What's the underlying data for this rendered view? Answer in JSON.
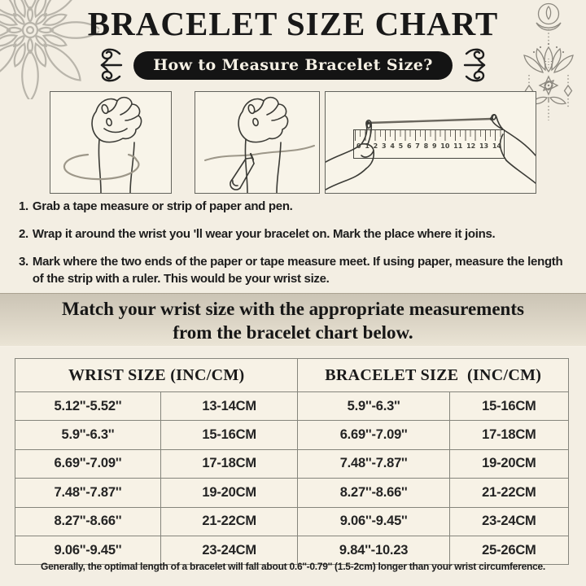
{
  "title": "BRACELET SIZE CHART",
  "subtitle": "How to Measure Bracelet Size?",
  "steps": [
    {
      "num": "1.",
      "text": "Grab a tape measure or strip of paper and pen."
    },
    {
      "num": "2.",
      "text": "Wrap it around the wrist you 'll wear your bracelet on. Mark the place where it joins."
    },
    {
      "num": "3.",
      "text": "Mark where the two ends of the paper or tape measure meet. If using paper, measure the length of the strip with a ruler. This would be your wrist size."
    }
  ],
  "banner": {
    "line1": "Match your wrist size with the appropriate measurements",
    "line2": "from the bracelet chart below."
  },
  "table": {
    "headers": {
      "wrist": "WRIST SIZE (INC/CM)",
      "bracelet": "BRACELET SIZE  (INC/CM)"
    },
    "rows": [
      [
        "5.12''-5.52''",
        "13-14CM",
        "5.9''-6.3''",
        "15-16CM"
      ],
      [
        "5.9''-6.3''",
        "15-16CM",
        "6.69''-7.09''",
        "17-18CM"
      ],
      [
        "6.69''-7.09''",
        "17-18CM",
        "7.48''-7.87''",
        "19-20CM"
      ],
      [
        "7.48''-7.87''",
        "19-20CM",
        "8.27''-8.66''",
        "21-22CM"
      ],
      [
        "8.27''-8.66''",
        "21-22CM",
        "9.06''-9.45''",
        "23-24CM"
      ],
      [
        "9.06''-9.45''",
        "23-24CM",
        "9.84''-10.23",
        "25-26CM"
      ]
    ]
  },
  "footer_note": "Generally, the optimal length of a bracelet will fall about 0.6''-0.79'' (1.5-2cm) longer than your wrist circumference.",
  "ruler": {
    "numbers": [
      "0",
      "1",
      "2",
      "3",
      "4",
      "5",
      "6",
      "7",
      "8",
      "9",
      "10",
      "11",
      "12",
      "13",
      "14"
    ]
  },
  "icons": {
    "top_left": "mandala-flower",
    "top_right": "lotus-pendant",
    "pill_sides": "ornamental-flourish"
  },
  "colors": {
    "background": "#f3eee3",
    "pill_bg": "#141414",
    "pill_text": "#f6f1e5",
    "banner_top": "#cbc4b5",
    "banner_bottom": "#eae4d5",
    "text": "#1d1d1d",
    "table_border": "#85857c",
    "line_art": "#3b3b36",
    "tape_gray": "#9d9789"
  }
}
